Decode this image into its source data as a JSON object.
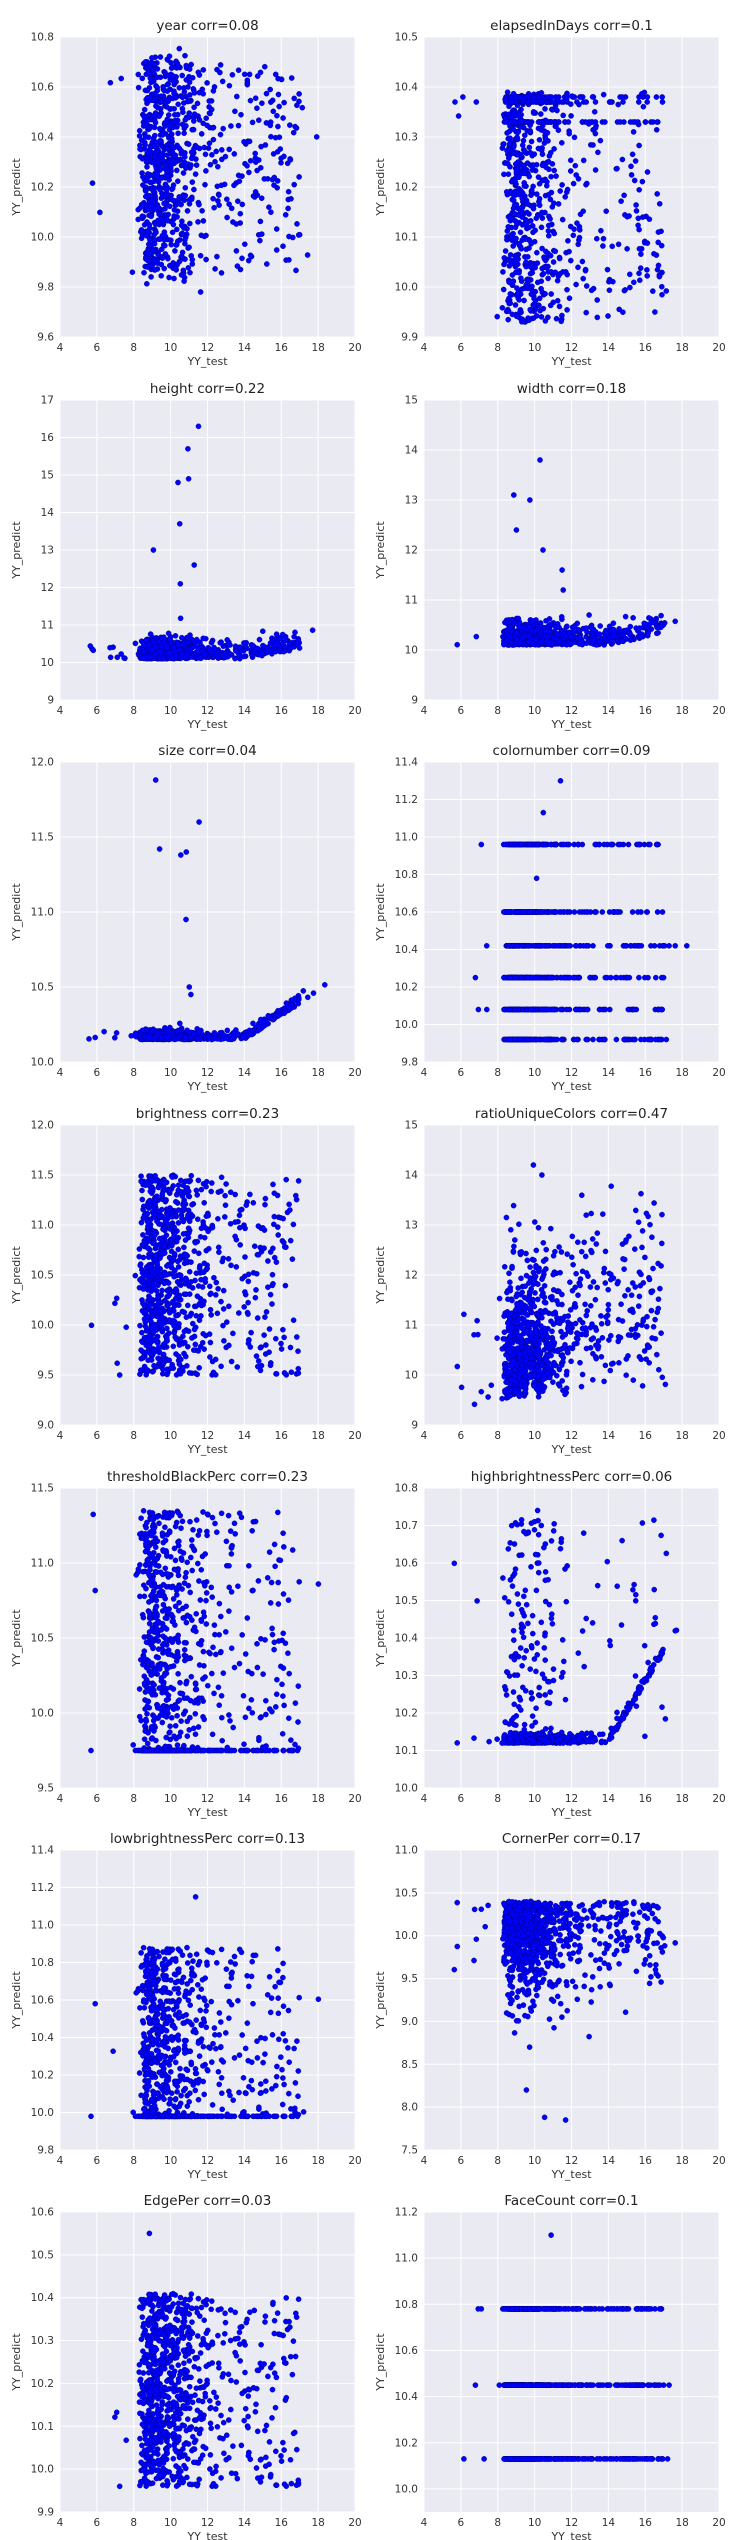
{
  "chart_data": [
    {
      "type": "scatter",
      "title": "year  corr=0.08",
      "xlabel": "YY_test",
      "ylabel": "YY_predict",
      "xlim": [
        4,
        20
      ],
      "ylim": [
        9.6,
        10.8
      ],
      "xticks": [
        "4",
        "6",
        "8",
        "10",
        "12",
        "14",
        "16",
        "18",
        "20"
      ],
      "yticks": [
        "9.6",
        "9.8",
        "10.0",
        "10.2",
        "10.4",
        "10.6",
        "10.8"
      ],
      "pattern": {
        "kind": "levels",
        "base": 9.9,
        "spread": 0.18,
        "levels": [
          9.9,
          10.0,
          10.1,
          10.2,
          10.3,
          10.35,
          10.45,
          10.55,
          10.65
        ],
        "outliers": [
          9.78,
          10.72
        ]
      }
    },
    {
      "type": "scatter",
      "title": "elapsedInDays  corr=0.1",
      "xlabel": "YY_test",
      "ylabel": "YY_predict",
      "xlim": [
        4,
        20
      ],
      "ylim": [
        9.9,
        10.5
      ],
      "xticks": [
        "4",
        "6",
        "8",
        "10",
        "12",
        "14",
        "16",
        "18",
        "20"
      ],
      "yticks": [
        "9.9",
        "10.0",
        "10.1",
        "10.2",
        "10.3",
        "10.4",
        "10.5"
      ],
      "pattern": {
        "kind": "band",
        "base": 9.93,
        "spread": 0.46,
        "levels": [
          10.38,
          10.37,
          10.33
        ],
        "outliers": [
          10.21
        ]
      }
    },
    {
      "type": "scatter",
      "title": "height  corr=0.22",
      "xlabel": "YY_test",
      "ylabel": "YY_predict",
      "xlim": [
        4,
        20
      ],
      "ylim": [
        9,
        17
      ],
      "xticks": [
        "4",
        "6",
        "8",
        "10",
        "12",
        "14",
        "16",
        "18",
        "20"
      ],
      "yticks": [
        "9",
        "10",
        "11",
        "12",
        "13",
        "14",
        "15",
        "16",
        "17"
      ],
      "pattern": {
        "kind": "floor",
        "base": 10.1,
        "spread": 0.45,
        "levels": [],
        "outliers": [
          15.7,
          14.8,
          13.7,
          13.0,
          12.6,
          12.1,
          16.3,
          14.9
        ]
      }
    },
    {
      "type": "scatter",
      "title": "width  corr=0.18",
      "xlabel": "YY_test",
      "ylabel": "YY_predict",
      "xlim": [
        4,
        20
      ],
      "ylim": [
        9,
        15
      ],
      "xticks": [
        "4",
        "6",
        "8",
        "10",
        "12",
        "14",
        "16",
        "18",
        "20"
      ],
      "yticks": [
        "9",
        "10",
        "11",
        "12",
        "13",
        "14",
        "15"
      ],
      "pattern": {
        "kind": "floor",
        "base": 10.1,
        "spread": 0.4,
        "levels": [],
        "outliers": [
          13.8,
          13.1,
          12.4,
          12.0,
          11.6,
          13.0,
          11.2
        ]
      }
    },
    {
      "type": "scatter",
      "title": "size  corr=0.04",
      "xlabel": "YY_test",
      "ylabel": "YY_predict",
      "xlim": [
        4,
        20
      ],
      "ylim": [
        10,
        12
      ],
      "xticks": [
        "4",
        "6",
        "8",
        "10",
        "12",
        "14",
        "16",
        "18",
        "20"
      ],
      "yticks": [
        "10.0",
        "10.5",
        "11.0",
        "11.5",
        "12.0"
      ],
      "pattern": {
        "kind": "floor",
        "base": 10.15,
        "spread": 0.05,
        "levels": [],
        "outliers": [
          11.88,
          11.4,
          11.38,
          11.42,
          11.6,
          10.95,
          10.5,
          10.45
        ]
      }
    },
    {
      "type": "scatter",
      "title": "colornumber  corr=0.09",
      "xlabel": "YY_test",
      "ylabel": "YY_predict",
      "xlim": [
        4,
        20
      ],
      "ylim": [
        9.8,
        11.4
      ],
      "xticks": [
        "4",
        "6",
        "8",
        "10",
        "12",
        "14",
        "16",
        "18",
        "20"
      ],
      "yticks": [
        "9.8",
        "10.0",
        "10.2",
        "10.4",
        "10.6",
        "10.8",
        "11.0",
        "11.2",
        "11.4"
      ],
      "pattern": {
        "kind": "levels",
        "base": 9.92,
        "spread": 0,
        "levels": [
          9.92,
          10.08,
          10.25,
          10.42,
          10.6,
          10.96
        ],
        "outliers": [
          11.13,
          11.3,
          10.78
        ]
      }
    },
    {
      "type": "scatter",
      "title": "brightness  corr=0.23",
      "xlabel": "YY_test",
      "ylabel": "YY_predict",
      "xlim": [
        4,
        20
      ],
      "ylim": [
        9,
        12
      ],
      "xticks": [
        "4",
        "6",
        "8",
        "10",
        "12",
        "14",
        "16",
        "18",
        "20"
      ],
      "yticks": [
        "9.0",
        "9.5",
        "10.0",
        "10.5",
        "11.0",
        "11.5",
        "12.0"
      ],
      "pattern": {
        "kind": "band",
        "base": 9.5,
        "spread": 2.0,
        "levels": [],
        "outliers": []
      }
    },
    {
      "type": "scatter",
      "title": "ratioUniqueColors  corr=0.47",
      "xlabel": "YY_test",
      "ylabel": "YY_predict",
      "xlim": [
        4,
        20
      ],
      "ylim": [
        9,
        15
      ],
      "xticks": [
        "4",
        "6",
        "8",
        "10",
        "12",
        "14",
        "16",
        "18",
        "20"
      ],
      "yticks": [
        "9",
        "10",
        "11",
        "12",
        "13",
        "14",
        "15"
      ],
      "pattern": {
        "kind": "trend",
        "base": 9.5,
        "spread": 1.2,
        "levels": [],
        "outliers": [
          14.2,
          14.0
        ]
      }
    },
    {
      "type": "scatter",
      "title": "thresholdBlackPerc  corr=0.23",
      "xlabel": "YY_test",
      "ylabel": "YY_predict",
      "xlim": [
        4,
        20
      ],
      "ylim": [
        9.5,
        11.5
      ],
      "xticks": [
        "4",
        "6",
        "8",
        "10",
        "12",
        "14",
        "16",
        "18",
        "20"
      ],
      "yticks": [
        "9.5",
        "10.0",
        "10.5",
        "11.0",
        "11.5"
      ],
      "pattern": {
        "kind": "band",
        "base": 9.75,
        "spread": 1.6,
        "levels": [
          9.75
        ],
        "outliers": []
      }
    },
    {
      "type": "scatter",
      "title": "highbrightnessPerc  corr=0.06",
      "xlabel": "YY_test",
      "ylabel": "YY_predict",
      "xlim": [
        4,
        20
      ],
      "ylim": [
        10,
        10.8
      ],
      "xticks": [
        "4",
        "6",
        "8",
        "10",
        "12",
        "14",
        "16",
        "18",
        "20"
      ],
      "yticks": [
        "10.0",
        "10.1",
        "10.2",
        "10.3",
        "10.4",
        "10.5",
        "10.6",
        "10.7",
        "10.8"
      ],
      "pattern": {
        "kind": "floor",
        "base": 10.12,
        "spread": 0.0,
        "levels": [
          10.12
        ],
        "outliers": [
          10.74,
          10.7,
          10.6
        ]
      }
    },
    {
      "type": "scatter",
      "title": "lowbrightnessPerc  corr=0.13",
      "xlabel": "YY_test",
      "ylabel": "YY_predict",
      "xlim": [
        4,
        20
      ],
      "ylim": [
        9.8,
        11.4
      ],
      "xticks": [
        "4",
        "6",
        "8",
        "10",
        "12",
        "14",
        "16",
        "18",
        "20"
      ],
      "yticks": [
        "9.8",
        "10.0",
        "10.2",
        "10.4",
        "10.6",
        "10.8",
        "11.0",
        "11.2",
        "11.4"
      ],
      "pattern": {
        "kind": "band",
        "base": 9.98,
        "spread": 0.9,
        "levels": [
          9.98
        ],
        "outliers": [
          11.15
        ]
      }
    },
    {
      "type": "scatter",
      "title": "CornerPer  corr=0.17",
      "xlabel": "YY_test",
      "ylabel": "YY_predict",
      "xlim": [
        4,
        20
      ],
      "ylim": [
        7.5,
        11
      ],
      "xticks": [
        "4",
        "6",
        "8",
        "10",
        "12",
        "14",
        "16",
        "18",
        "20"
      ],
      "yticks": [
        "7.5",
        "8.0",
        "8.5",
        "9.0",
        "9.5",
        "10.0",
        "10.5",
        "11.0"
      ],
      "pattern": {
        "kind": "ceiling",
        "base": 10.4,
        "spread": 1.5,
        "levels": [
          10.4
        ],
        "outliers": [
          7.85,
          8.2,
          8.7
        ]
      }
    },
    {
      "type": "scatter",
      "title": "EdgePer  corr=0.03",
      "xlabel": "YY_test",
      "ylabel": "YY_predict",
      "xlim": [
        4,
        20
      ],
      "ylim": [
        9.9,
        10.6
      ],
      "xticks": [
        "4",
        "6",
        "8",
        "10",
        "12",
        "14",
        "16",
        "18",
        "20"
      ],
      "yticks": [
        "9.9",
        "10.0",
        "10.1",
        "10.2",
        "10.3",
        "10.4",
        "10.5",
        "10.6"
      ],
      "pattern": {
        "kind": "band",
        "base": 9.96,
        "spread": 0.45,
        "levels": [],
        "outliers": [
          10.55
        ]
      }
    },
    {
      "type": "scatter",
      "title": "FaceCount  corr=0.1",
      "xlabel": "YY_test",
      "ylabel": "YY_predict",
      "xlim": [
        4,
        20
      ],
      "ylim": [
        9.9,
        11.2
      ],
      "xticks": [
        "4",
        "6",
        "8",
        "10",
        "12",
        "14",
        "16",
        "18",
        "20"
      ],
      "yticks": [
        "10.0",
        "10.2",
        "10.4",
        "10.6",
        "10.8",
        "11.0",
        "11.2"
      ],
      "pattern": {
        "kind": "levels",
        "base": 10.13,
        "spread": 0,
        "levels": [
          10.13,
          10.45,
          10.78
        ],
        "outliers": [
          11.1
        ]
      }
    }
  ],
  "colors": {
    "background": "#eaeaf2",
    "grid": "#ffffff",
    "marker": "#0000ff",
    "marker_edge": "#00007f"
  }
}
